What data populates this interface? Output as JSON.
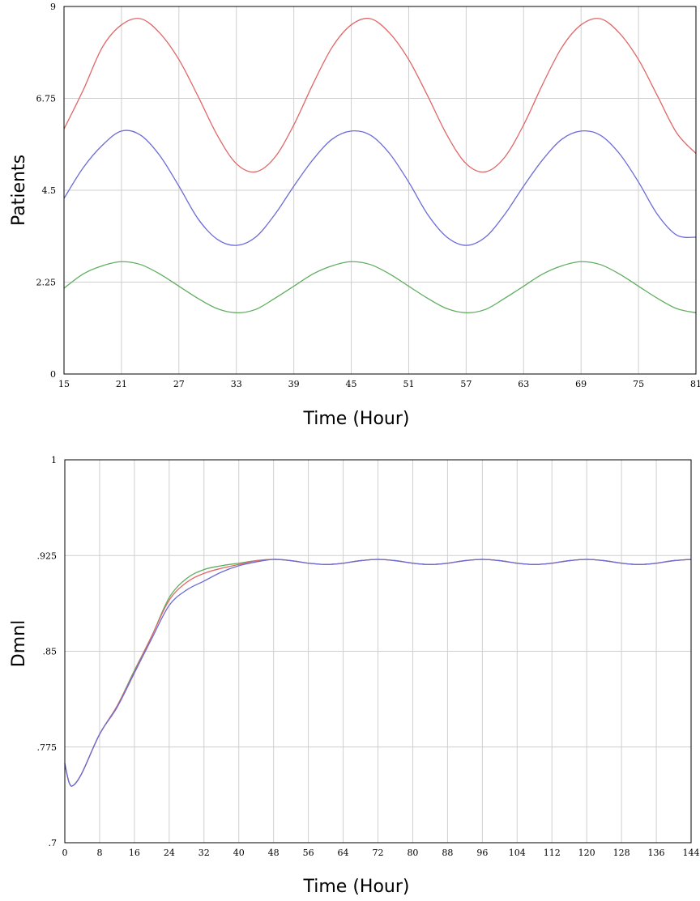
{
  "chart_data": [
    {
      "type": "line",
      "title": "",
      "xlabel": "Time (Hour)",
      "ylabel": "Patients",
      "xlim": [
        15,
        81
      ],
      "ylim": [
        0,
        9
      ],
      "x_ticks": [
        "15",
        "21",
        "27",
        "33",
        "39",
        "45",
        "51",
        "57",
        "63",
        "69",
        "75",
        "81"
      ],
      "y_ticks": [
        "0",
        "2.25",
        "4.5",
        "6.75",
        "9"
      ],
      "grid": true,
      "legend": "none",
      "x": [
        15,
        17,
        19,
        21,
        23,
        25,
        27,
        29,
        31,
        33,
        35,
        37,
        39,
        41,
        43,
        45,
        47,
        49,
        51,
        53,
        55,
        57,
        59,
        61,
        63,
        65,
        67,
        69,
        71,
        73,
        75,
        77,
        79,
        81
      ],
      "series": [
        {
          "color": "#e06666",
          "values": [
            6.0,
            6.95,
            8.0,
            8.55,
            8.7,
            8.35,
            7.7,
            6.8,
            5.85,
            5.15,
            4.95,
            5.3,
            6.1,
            7.1,
            8.0,
            8.55,
            8.7,
            8.35,
            7.7,
            6.8,
            5.85,
            5.15,
            4.95,
            5.3,
            6.1,
            7.1,
            8.0,
            8.55,
            8.7,
            8.35,
            7.7,
            6.8,
            5.9,
            5.4
          ]
        },
        {
          "color": "#6b6bd6",
          "values": [
            4.3,
            5.05,
            5.6,
            5.95,
            5.85,
            5.35,
            4.6,
            3.8,
            3.3,
            3.15,
            3.35,
            3.9,
            4.6,
            5.25,
            5.75,
            5.95,
            5.85,
            5.4,
            4.7,
            3.9,
            3.35,
            3.15,
            3.35,
            3.9,
            4.6,
            5.25,
            5.75,
            5.95,
            5.85,
            5.4,
            4.7,
            3.9,
            3.4,
            3.35
          ]
        },
        {
          "color": "#5fae5f",
          "values": [
            2.1,
            2.45,
            2.65,
            2.75,
            2.68,
            2.45,
            2.15,
            1.85,
            1.6,
            1.5,
            1.58,
            1.85,
            2.15,
            2.45,
            2.65,
            2.75,
            2.68,
            2.45,
            2.15,
            1.85,
            1.6,
            1.5,
            1.58,
            1.85,
            2.15,
            2.45,
            2.65,
            2.75,
            2.68,
            2.45,
            2.15,
            1.85,
            1.6,
            1.5
          ]
        }
      ]
    },
    {
      "type": "line",
      "title": "",
      "xlabel": "Time (Hour)",
      "ylabel": "Dmnl",
      "xlim": [
        0,
        144
      ],
      "ylim": [
        0.7,
        1
      ],
      "x_ticks": [
        "0",
        "8",
        "16",
        "24",
        "32",
        "40",
        "48",
        "56",
        "64",
        "72",
        "80",
        "88",
        "96",
        "104",
        "112",
        "120",
        "128",
        "136",
        "144"
      ],
      "y_ticks": [
        ".7",
        ".775",
        ".85",
        ".925",
        "1"
      ],
      "grid": true,
      "legend": "none",
      "x": [
        0,
        1,
        2,
        4,
        8,
        12,
        16,
        20,
        24,
        28,
        32,
        36,
        40,
        44,
        48,
        52,
        56,
        60,
        64,
        68,
        72,
        76,
        80,
        84,
        88,
        92,
        96,
        100,
        104,
        108,
        112,
        116,
        120,
        124,
        128,
        132,
        136,
        140,
        144
      ],
      "series": [
        {
          "color": "#5fae5f",
          "values": [
            0.762,
            0.747,
            0.745,
            0.755,
            0.785,
            0.807,
            0.835,
            0.862,
            0.892,
            0.907,
            0.914,
            0.917,
            0.919,
            0.921,
            0.922,
            0.921,
            0.919,
            0.918,
            0.919,
            0.921,
            0.922,
            0.921,
            0.919,
            0.918,
            0.919,
            0.921,
            0.922,
            0.921,
            0.919,
            0.918,
            0.919,
            0.921,
            0.922,
            0.921,
            0.919,
            0.918,
            0.919,
            0.921,
            0.922
          ]
        },
        {
          "color": "#e06666",
          "values": [
            0.762,
            0.747,
            0.745,
            0.755,
            0.785,
            0.807,
            0.834,
            0.862,
            0.89,
            0.904,
            0.911,
            0.915,
            0.918,
            0.921,
            0.922,
            0.921,
            0.919,
            0.918,
            0.919,
            0.921,
            0.922,
            0.921,
            0.919,
            0.918,
            0.919,
            0.921,
            0.922,
            0.921,
            0.919,
            0.918,
            0.919,
            0.921,
            0.922,
            0.921,
            0.919,
            0.918,
            0.919,
            0.921,
            0.922
          ]
        },
        {
          "color": "#6b6bd6",
          "values": [
            0.762,
            0.747,
            0.745,
            0.755,
            0.785,
            0.806,
            0.833,
            0.86,
            0.886,
            0.898,
            0.905,
            0.912,
            0.917,
            0.92,
            0.922,
            0.921,
            0.919,
            0.918,
            0.919,
            0.921,
            0.922,
            0.921,
            0.919,
            0.918,
            0.919,
            0.921,
            0.922,
            0.921,
            0.919,
            0.918,
            0.919,
            0.921,
            0.922,
            0.921,
            0.919,
            0.918,
            0.919,
            0.921,
            0.922
          ]
        }
      ]
    }
  ]
}
